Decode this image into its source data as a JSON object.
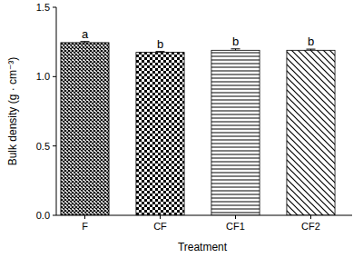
{
  "chart_data": {
    "type": "bar",
    "categories": [
      "F",
      "CF",
      "CF1",
      "CF2"
    ],
    "values": [
      1.245,
      1.175,
      1.19,
      1.19
    ],
    "errors": [
      0.008,
      0.006,
      0.01,
      0.008
    ],
    "significance_letters": [
      "a",
      "b",
      "b",
      "b"
    ],
    "color": "#000000",
    "x_label": "Treatment",
    "y_label": "Bulk density (g · cm⁻³)",
    "ylim": [
      0,
      1.5
    ],
    "yticks": [
      {
        "value": 0,
        "label": "0.0"
      },
      0.5,
      {
        "value": 1,
        "label": "1.0"
      },
      1.5
    ],
    "grid": false
  }
}
